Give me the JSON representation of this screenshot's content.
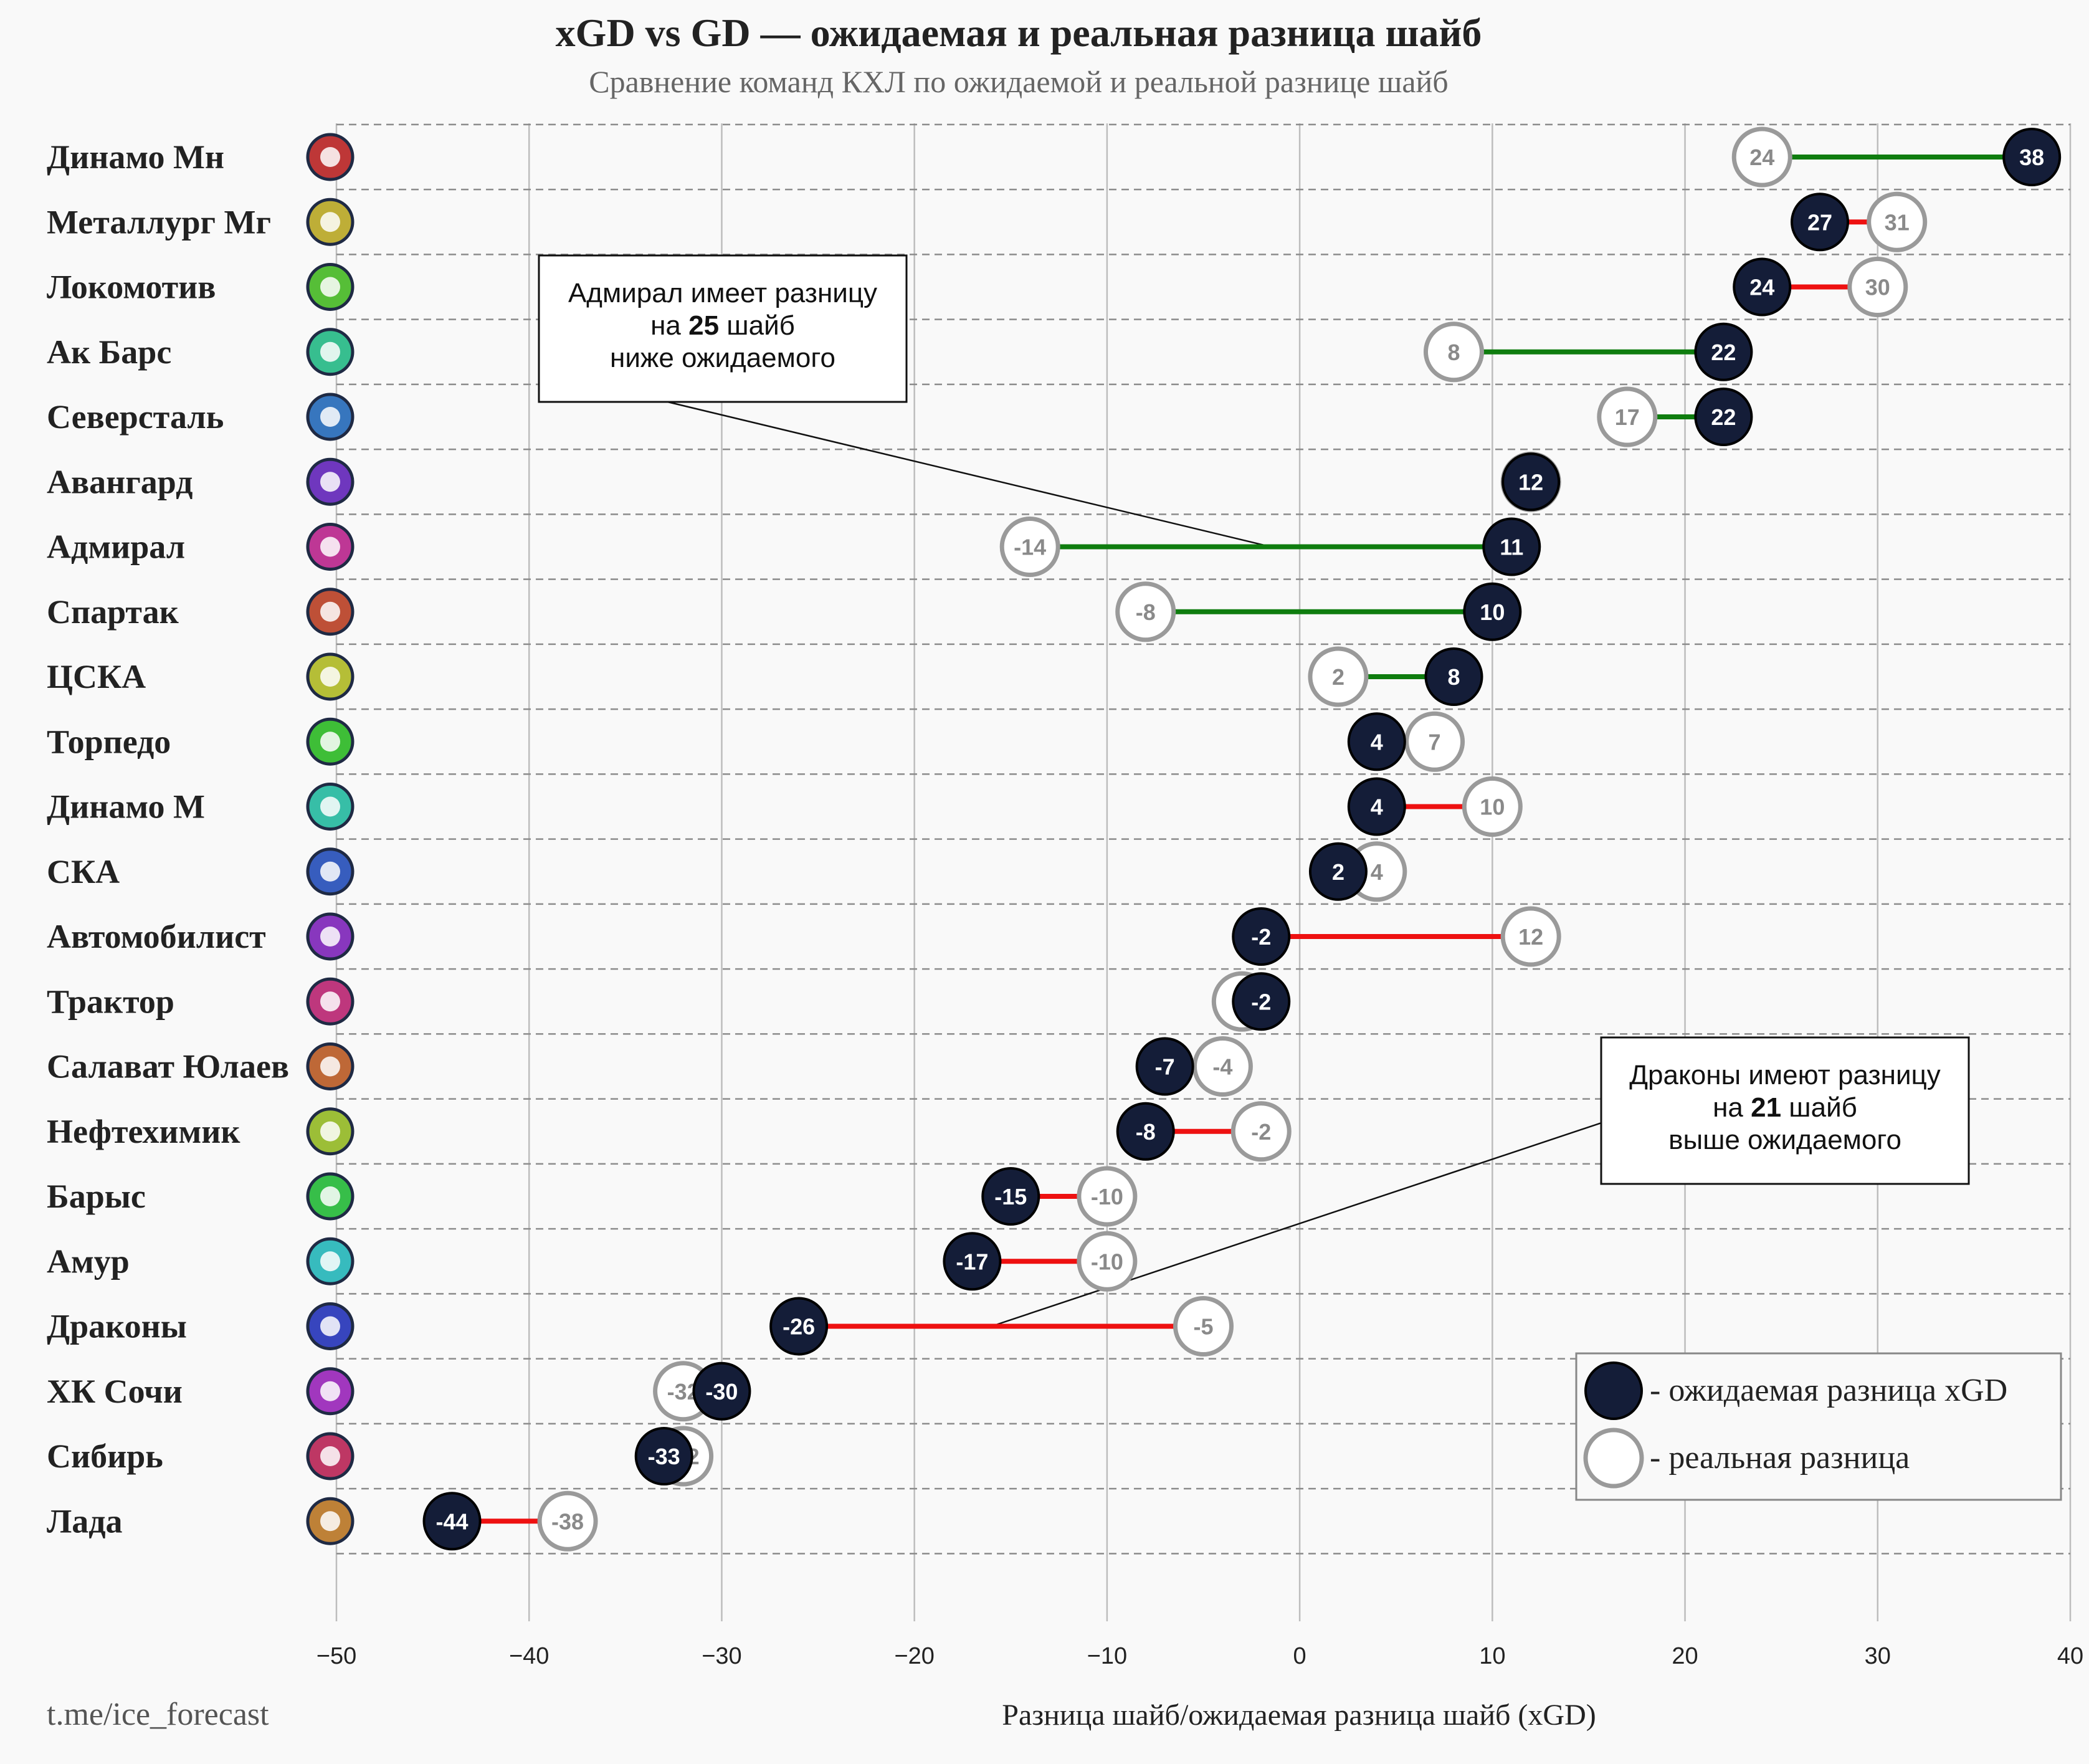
{
  "title": "xGD vs GD — ожидаемая и реальная разница шайб",
  "subtitle": "Сравнение команд КХЛ по ожидаемой и реальной разнице шайб",
  "watermark": "t.me/ice_forecast",
  "colors": {
    "xgd_fill": "#141d38",
    "gd_fill": "#ffffff",
    "gd_stroke": "#9a9a9a",
    "positive_line": "#0f7d0f",
    "negative_line": "#ee1111",
    "grid": "#bdbdbd",
    "row_line": "#8c8c8c"
  },
  "chart_data": {
    "type": "dumbbell",
    "title": "xGD vs GD — ожидаемая и реальная разница шайб",
    "subtitle": "Сравнение команд КХЛ по ожидаемой и реальной разнице шайб",
    "xlabel": "Разница шайб/ожидаемая разница шайб (xGD)",
    "ylabel": "",
    "xlim": [
      -50,
      40
    ],
    "xticks": [
      -50,
      -40,
      -30,
      -20,
      -10,
      0,
      10,
      20,
      30,
      40
    ],
    "xtick_labels": [
      "−50",
      "−40",
      "−30",
      "−20",
      "−10",
      "0",
      "10",
      "20",
      "30",
      "40"
    ],
    "grid": "vertical",
    "legend_position": "bottom-right",
    "legend": [
      {
        "key": "xgd",
        "label": "- ожидаемая разница xGD"
      },
      {
        "key": "gd",
        "label": "- реальная разница"
      }
    ],
    "teams": [
      {
        "name": "Динамо Мн",
        "xgd": 38,
        "gd": 24,
        "logo": "dinamo-minsk-logo-icon"
      },
      {
        "name": "Металлург Мг",
        "xgd": 27,
        "gd": 31,
        "logo": "metallurg-logo-icon"
      },
      {
        "name": "Локомотив",
        "xgd": 24,
        "gd": 30,
        "logo": "lokomotiv-logo-icon"
      },
      {
        "name": "Ак Барс",
        "xgd": 22,
        "gd": 8,
        "logo": "ak-bars-logo-icon"
      },
      {
        "name": "Северсталь",
        "xgd": 22,
        "gd": 17,
        "logo": "severstal-logo-icon"
      },
      {
        "name": "Авангард",
        "xgd": 12,
        "gd": 12,
        "logo": "avangard-logo-icon"
      },
      {
        "name": "Адмирал",
        "xgd": 11,
        "gd": -14,
        "logo": "admiral-logo-icon"
      },
      {
        "name": "Спартак",
        "xgd": 10,
        "gd": -8,
        "logo": "spartak-logo-icon"
      },
      {
        "name": "ЦСКА",
        "xgd": 8,
        "gd": 2,
        "logo": "cska-logo-icon"
      },
      {
        "name": "Торпедо",
        "xgd": 4,
        "gd": 7,
        "logo": "torpedo-logo-icon"
      },
      {
        "name": "Динамо М",
        "xgd": 4,
        "gd": 10,
        "logo": "dinamo-moscow-logo-icon"
      },
      {
        "name": "СКА",
        "xgd": 2,
        "gd": 4,
        "logo": "ska-logo-icon"
      },
      {
        "name": "Автомобилист",
        "xgd": -2,
        "gd": 12,
        "logo": "avtomobilist-logo-icon"
      },
      {
        "name": "Трактор",
        "xgd": -2,
        "gd": -3,
        "logo": "traktor-logo-icon"
      },
      {
        "name": "Салават Юлаев",
        "xgd": -7,
        "gd": -4,
        "logo": "salavat-logo-icon"
      },
      {
        "name": "Нефтехимик",
        "xgd": -8,
        "gd": -2,
        "logo": "neftekhimik-logo-icon"
      },
      {
        "name": "Барыс",
        "xgd": -15,
        "gd": -10,
        "logo": "barys-logo-icon"
      },
      {
        "name": "Амур",
        "xgd": -17,
        "gd": -10,
        "logo": "amur-logo-icon"
      },
      {
        "name": "Драконы",
        "xgd": -26,
        "gd": -5,
        "logo": "dragons-logo-icon"
      },
      {
        "name": "ХК Сочи",
        "xgd": -30,
        "gd": -32,
        "logo": "sochi-logo-icon"
      },
      {
        "name": "Сибирь",
        "xgd": -33,
        "gd": -32,
        "logo": "sibir-logo-icon"
      },
      {
        "name": "Лада",
        "xgd": -44,
        "gd": -38,
        "logo": "lada-logo-icon"
      }
    ],
    "annotations": [
      {
        "team": "Адмирал",
        "x": -1.5,
        "lines": [
          "Адмирал имеет разницу",
          "на 25 шайб",
          "ниже ожидаемого"
        ],
        "highlight": "25"
      },
      {
        "team": "Драконы",
        "x": -16,
        "lines": [
          "Драконы имеют разницу",
          "на 21 шайб",
          "выше ожидаемого"
        ],
        "highlight": "21"
      }
    ]
  }
}
